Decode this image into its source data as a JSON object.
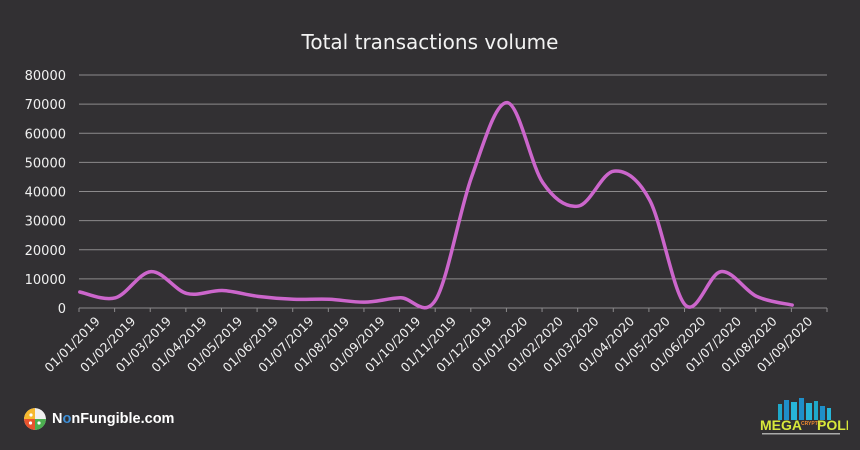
{
  "chart_data": {
    "type": "line",
    "title": "Total transactions volume",
    "xlabel": "",
    "ylabel": "",
    "ylim": [
      0,
      80000
    ],
    "yticks": [
      0,
      10000,
      20000,
      30000,
      40000,
      50000,
      60000,
      70000,
      80000
    ],
    "grid": true,
    "legend": null,
    "line_color": "#cc66cc",
    "categories": [
      "01/01/2019",
      "01/02/2019",
      "01/03/2019",
      "01/04/2019",
      "01/05/2019",
      "01/06/2019",
      "01/07/2019",
      "01/08/2019",
      "01/09/2019",
      "01/10/2019",
      "01/11/2019",
      "01/12/2019",
      "01/01/2020",
      "01/02/2020",
      "01/03/2020",
      "01/04/2020",
      "01/05/2020",
      "01/06/2020",
      "01/07/2020",
      "01/08/2020",
      "01/09/2020"
    ],
    "series": [
      {
        "name": "Total transactions volume",
        "values": [
          5500,
          3500,
          12500,
          5000,
          6000,
          4000,
          3000,
          3000,
          2000,
          3500,
          3000,
          45000,
          70500,
          43000,
          35000,
          47000,
          37000,
          1000,
          12500,
          4000,
          1000
        ]
      }
    ]
  },
  "footer": {
    "left_brand": {
      "prefix": "N",
      "highlight": "o",
      "suffix": "nFungible.com"
    },
    "right_brand": {
      "line1": "MEGA",
      "mid": "CRYPTO",
      "line2": "POLIS"
    }
  },
  "colors": {
    "background": "#323033",
    "grid": "#8c8a8c",
    "line": "#cc66cc",
    "text": "#f0f0f0"
  }
}
